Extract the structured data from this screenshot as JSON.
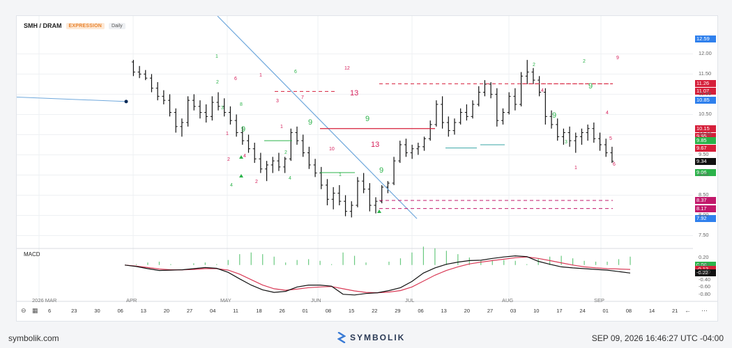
{
  "header": {
    "symbol": "SMH / DRAM",
    "mode": "EXPRESSION",
    "timeframe": "Daily"
  },
  "macd_label": "MACD",
  "footer": {
    "site": "symbolik.com",
    "brand": "SYMBOLIK",
    "timestamp": "SEP 09, 2026 16:46:27 UTC -04:00"
  },
  "colors": {
    "bullish": "#2bb34a",
    "bearish": "#d61f5b",
    "trendline": "#6fa8dc",
    "macd_line": "#111111",
    "signal_line": "#d93a56"
  },
  "price_axis": {
    "ticks": [
      "12.00",
      "11.50",
      "11.00",
      "10.50",
      "10.00",
      "9.50",
      "9.00",
      "8.50",
      "8.00",
      "7.50"
    ],
    "top_label": "12.59"
  },
  "price_tags": [
    {
      "v": "12.59",
      "color": "#2f80ed"
    },
    {
      "v": "11.26",
      "color": "#d61f3a"
    },
    {
      "v": "11.07",
      "color": "#d61f3a"
    },
    {
      "v": "10.85",
      "color": "#2f80ed"
    },
    {
      "v": "10.15",
      "color": "#d61f3a"
    },
    {
      "v": "9.95",
      "color": "#d61f3a"
    },
    {
      "v": "9.85",
      "color": "#2bb34a"
    },
    {
      "v": "9.67",
      "color": "#d61f3a"
    },
    {
      "v": "9.34",
      "color": "#111111"
    },
    {
      "v": "9.06",
      "color": "#2bb34a"
    },
    {
      "v": "8.37",
      "color": "#c2186b"
    },
    {
      "v": "8.17",
      "color": "#c2186b"
    },
    {
      "v": "7.92",
      "color": "#2f80ed"
    }
  ],
  "macd_axis": {
    "ticks": [
      "0.20",
      "0.00",
      "-0.20",
      "-0.40",
      "-0.60",
      "-0.80"
    ],
    "tags": [
      {
        "v": "0.00",
        "color": "#2bb34a"
      },
      {
        "v": "-0.12",
        "color": "#d61f3a"
      },
      {
        "v": "-0.22",
        "color": "#111111"
      }
    ]
  },
  "x_axis": {
    "month_labels": [
      {
        "label": "2026 MAR",
        "x": "32"
      },
      {
        "label": "APR",
        "x": "167"
      },
      {
        "label": "MAY",
        "x": "302"
      },
      {
        "label": "JUN",
        "x": "432"
      },
      {
        "label": "JUL",
        "x": "567"
      },
      {
        "label": "AUG",
        "x": "706"
      },
      {
        "label": "SEP",
        "x": "838"
      }
    ],
    "day_labels": [
      "6",
      "23",
      "30",
      "06",
      "13",
      "20",
      "27",
      "04",
      "11",
      "18",
      "26",
      "01",
      "08",
      "15",
      "22",
      "29",
      "06",
      "13",
      "20",
      "27",
      "03",
      "10",
      "17",
      "24",
      "01",
      "08",
      "14",
      "21"
    ]
  },
  "chart_data": {
    "type": "bar",
    "symbol": "SMH / DRAM",
    "timeframe": "Daily",
    "ylim": [
      7.25,
      12.8
    ],
    "ohlc": [
      [
        11.8,
        11.85,
        11.45,
        11.55
      ],
      [
        11.55,
        11.7,
        11.4,
        11.5
      ],
      [
        11.5,
        11.6,
        11.35,
        11.4
      ],
      [
        11.4,
        11.5,
        11.05,
        11.15
      ],
      [
        11.15,
        11.3,
        10.85,
        10.95
      ],
      [
        10.95,
        11.1,
        10.75,
        10.85
      ],
      [
        10.85,
        11.0,
        10.45,
        10.55
      ],
      [
        10.55,
        10.65,
        10.05,
        10.2
      ],
      [
        10.2,
        10.4,
        9.95,
        10.3
      ],
      [
        10.3,
        10.95,
        10.2,
        10.85
      ],
      [
        10.85,
        11.0,
        10.6,
        10.7
      ],
      [
        10.7,
        10.85,
        10.4,
        10.55
      ],
      [
        10.55,
        10.75,
        10.3,
        10.45
      ],
      [
        10.45,
        10.95,
        10.35,
        10.8
      ],
      [
        10.8,
        11.05,
        10.6,
        10.7
      ],
      [
        10.7,
        10.9,
        10.45,
        10.55
      ],
      [
        10.55,
        10.7,
        10.25,
        10.35
      ],
      [
        10.35,
        10.5,
        9.95,
        10.05
      ],
      [
        10.05,
        10.2,
        9.75,
        9.85
      ],
      [
        9.85,
        10.0,
        9.55,
        9.65
      ],
      [
        9.65,
        9.8,
        9.3,
        9.4
      ],
      [
        9.4,
        9.55,
        9.05,
        9.15
      ],
      [
        9.15,
        9.35,
        8.85,
        9.25
      ],
      [
        9.25,
        9.45,
        9.05,
        9.35
      ],
      [
        9.35,
        9.55,
        9.1,
        9.2
      ],
      [
        9.2,
        9.45,
        9.05,
        9.4
      ],
      [
        9.4,
        10.15,
        9.35,
        10.05
      ],
      [
        10.05,
        10.2,
        9.75,
        9.85
      ],
      [
        9.85,
        10.0,
        9.45,
        9.55
      ],
      [
        9.55,
        9.7,
        9.15,
        9.25
      ],
      [
        9.25,
        9.4,
        8.95,
        9.05
      ],
      [
        9.05,
        9.2,
        8.65,
        8.75
      ],
      [
        8.75,
        8.9,
        8.25,
        8.4
      ],
      [
        8.4,
        8.7,
        8.15,
        8.55
      ],
      [
        8.55,
        8.75,
        8.25,
        8.35
      ],
      [
        8.35,
        8.5,
        7.98,
        8.1
      ],
      [
        8.1,
        8.35,
        7.95,
        8.25
      ],
      [
        8.25,
        8.95,
        8.2,
        8.85
      ],
      [
        8.85,
        9.05,
        8.55,
        8.65
      ],
      [
        8.65,
        8.8,
        8.1,
        8.25
      ],
      [
        8.25,
        8.45,
        8.05,
        8.35
      ],
      [
        8.35,
        8.75,
        8.3,
        8.7
      ],
      [
        8.7,
        8.85,
        8.55,
        8.8
      ],
      [
        8.8,
        9.45,
        8.75,
        9.35
      ],
      [
        9.35,
        9.85,
        9.3,
        9.75
      ],
      [
        9.75,
        9.9,
        9.45,
        9.55
      ],
      [
        9.55,
        9.75,
        9.4,
        9.65
      ],
      [
        9.65,
        9.8,
        9.5,
        9.7
      ],
      [
        9.7,
        9.95,
        9.6,
        9.9
      ],
      [
        9.9,
        10.35,
        9.85,
        10.25
      ],
      [
        10.25,
        10.85,
        10.2,
        10.75
      ],
      [
        10.75,
        10.95,
        10.15,
        10.3
      ],
      [
        10.3,
        10.45,
        9.95,
        10.1
      ],
      [
        10.1,
        10.4,
        10.0,
        10.3
      ],
      [
        10.3,
        10.65,
        10.25,
        10.55
      ],
      [
        10.55,
        10.75,
        10.35,
        10.45
      ],
      [
        10.45,
        10.85,
        10.4,
        10.75
      ],
      [
        10.75,
        11.2,
        10.7,
        11.05
      ],
      [
        11.05,
        11.35,
        10.95,
        11.25
      ],
      [
        11.25,
        11.3,
        10.9,
        11.0
      ],
      [
        11.0,
        11.15,
        10.2,
        10.35
      ],
      [
        10.35,
        10.65,
        10.25,
        10.55
      ],
      [
        10.55,
        11.05,
        10.5,
        10.95
      ],
      [
        10.95,
        11.15,
        10.6,
        10.75
      ],
      [
        10.75,
        11.55,
        10.7,
        11.45
      ],
      [
        11.45,
        11.85,
        11.25,
        11.55
      ],
      [
        11.55,
        11.65,
        11.25,
        11.35
      ],
      [
        11.35,
        11.45,
        10.95,
        11.05
      ],
      [
        11.05,
        11.15,
        10.25,
        10.45
      ],
      [
        10.45,
        10.6,
        10.15,
        10.25
      ],
      [
        10.25,
        10.4,
        9.85,
        9.95
      ],
      [
        9.95,
        10.15,
        9.75,
        10.05
      ],
      [
        10.05,
        10.2,
        9.7,
        9.85
      ],
      [
        9.85,
        10.05,
        9.55,
        9.95
      ],
      [
        9.95,
        10.15,
        9.75,
        10.05
      ],
      [
        10.05,
        10.25,
        9.85,
        10.15
      ],
      [
        10.15,
        10.3,
        9.8,
        9.9
      ],
      [
        9.9,
        10.05,
        9.6,
        9.75
      ],
      [
        9.75,
        9.9,
        9.45,
        9.55
      ],
      [
        9.55,
        9.7,
        9.3,
        9.34
      ]
    ],
    "levels": [
      {
        "price": 11.26,
        "style": "dashed",
        "color": "#d61f3a"
      },
      {
        "price": 8.37,
        "style": "dashed",
        "color": "#c2186b"
      },
      {
        "price": 8.17,
        "style": "dashed",
        "color": "#c2186b"
      }
    ],
    "macd": {
      "ylim": [
        -0.9,
        0.3
      ],
      "macd": [
        0.0,
        -0.04,
        -0.1,
        -0.15,
        -0.14,
        -0.13,
        -0.1,
        -0.07,
        -0.09,
        -0.2,
        -0.38,
        -0.55,
        -0.68,
        -0.75,
        -0.72,
        -0.6,
        -0.55,
        -0.55,
        -0.58,
        -0.8,
        -0.82,
        -0.78,
        -0.76,
        -0.7,
        -0.62,
        -0.45,
        -0.22,
        -0.08,
        0.02,
        0.08,
        0.12,
        0.13,
        0.18,
        0.22,
        0.25,
        0.23,
        0.1,
        0.02,
        -0.05,
        -0.08,
        -0.1,
        -0.12,
        -0.14,
        -0.18,
        -0.22
      ],
      "signal": [
        0.0,
        -0.03,
        -0.07,
        -0.11,
        -0.13,
        -0.13,
        -0.12,
        -0.1,
        -0.1,
        -0.14,
        -0.25,
        -0.4,
        -0.55,
        -0.65,
        -0.69,
        -0.66,
        -0.62,
        -0.6,
        -0.59,
        -0.65,
        -0.71,
        -0.75,
        -0.76,
        -0.74,
        -0.7,
        -0.6,
        -0.44,
        -0.28,
        -0.15,
        -0.05,
        0.03,
        0.08,
        0.12,
        0.16,
        0.2,
        0.22,
        0.18,
        0.12,
        0.06,
        0.0,
        -0.05,
        -0.08,
        -0.1,
        -0.11,
        -0.12
      ]
    }
  }
}
